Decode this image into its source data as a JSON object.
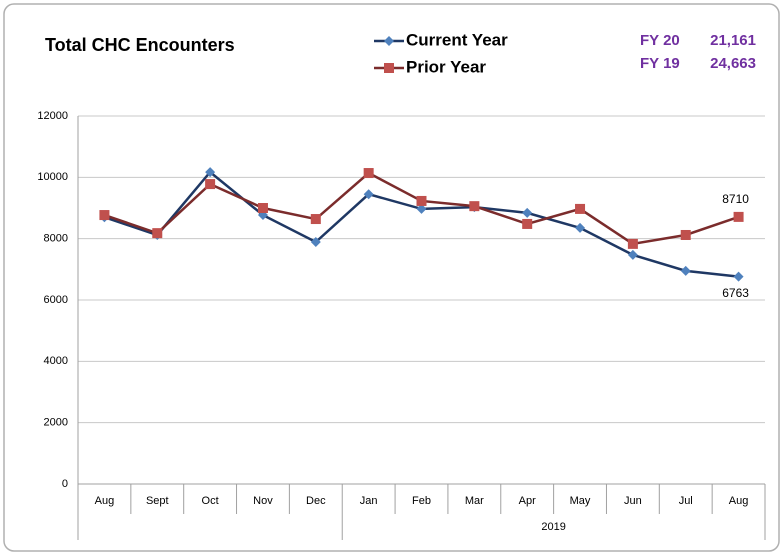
{
  "chart_data": {
    "type": "line",
    "title": "Total CHC Encounters",
    "categories": [
      "Aug",
      "Sept",
      "Oct",
      "Nov",
      "Dec",
      "Jan",
      "Feb",
      "Mar",
      "Apr",
      "May",
      "Jun",
      "Jul",
      "Aug"
    ],
    "category_groups": [
      {
        "label": "2019",
        "start": 5,
        "end": 12
      }
    ],
    "series": [
      {
        "name": "Current Year",
        "color": "#1f3864",
        "marker_color": "#4f81bd",
        "marker": "diamond",
        "values": [
          8700,
          8120,
          10170,
          8770,
          7890,
          9450,
          8970,
          9030,
          8840,
          8350,
          7470,
          6950,
          6763
        ]
      },
      {
        "name": "Prior Year",
        "color": "#7b2c2c",
        "marker_color": "#c0504d",
        "marker": "square",
        "values": [
          8770,
          8180,
          9780,
          9000,
          8640,
          10140,
          9230,
          9060,
          8480,
          8970,
          7830,
          8120,
          8710
        ]
      }
    ],
    "data_labels": [
      {
        "series": 1,
        "index": 12,
        "position": "above"
      },
      {
        "series": 0,
        "index": 12,
        "position": "below"
      }
    ],
    "summary": [
      {
        "label": "FY 20",
        "value": "21,161"
      },
      {
        "label": "FY 19",
        "value": "24,663"
      }
    ],
    "ylim": [
      0,
      12000
    ],
    "yticks": [
      0,
      2000,
      4000,
      6000,
      8000,
      10000,
      12000
    ],
    "grid": true
  }
}
